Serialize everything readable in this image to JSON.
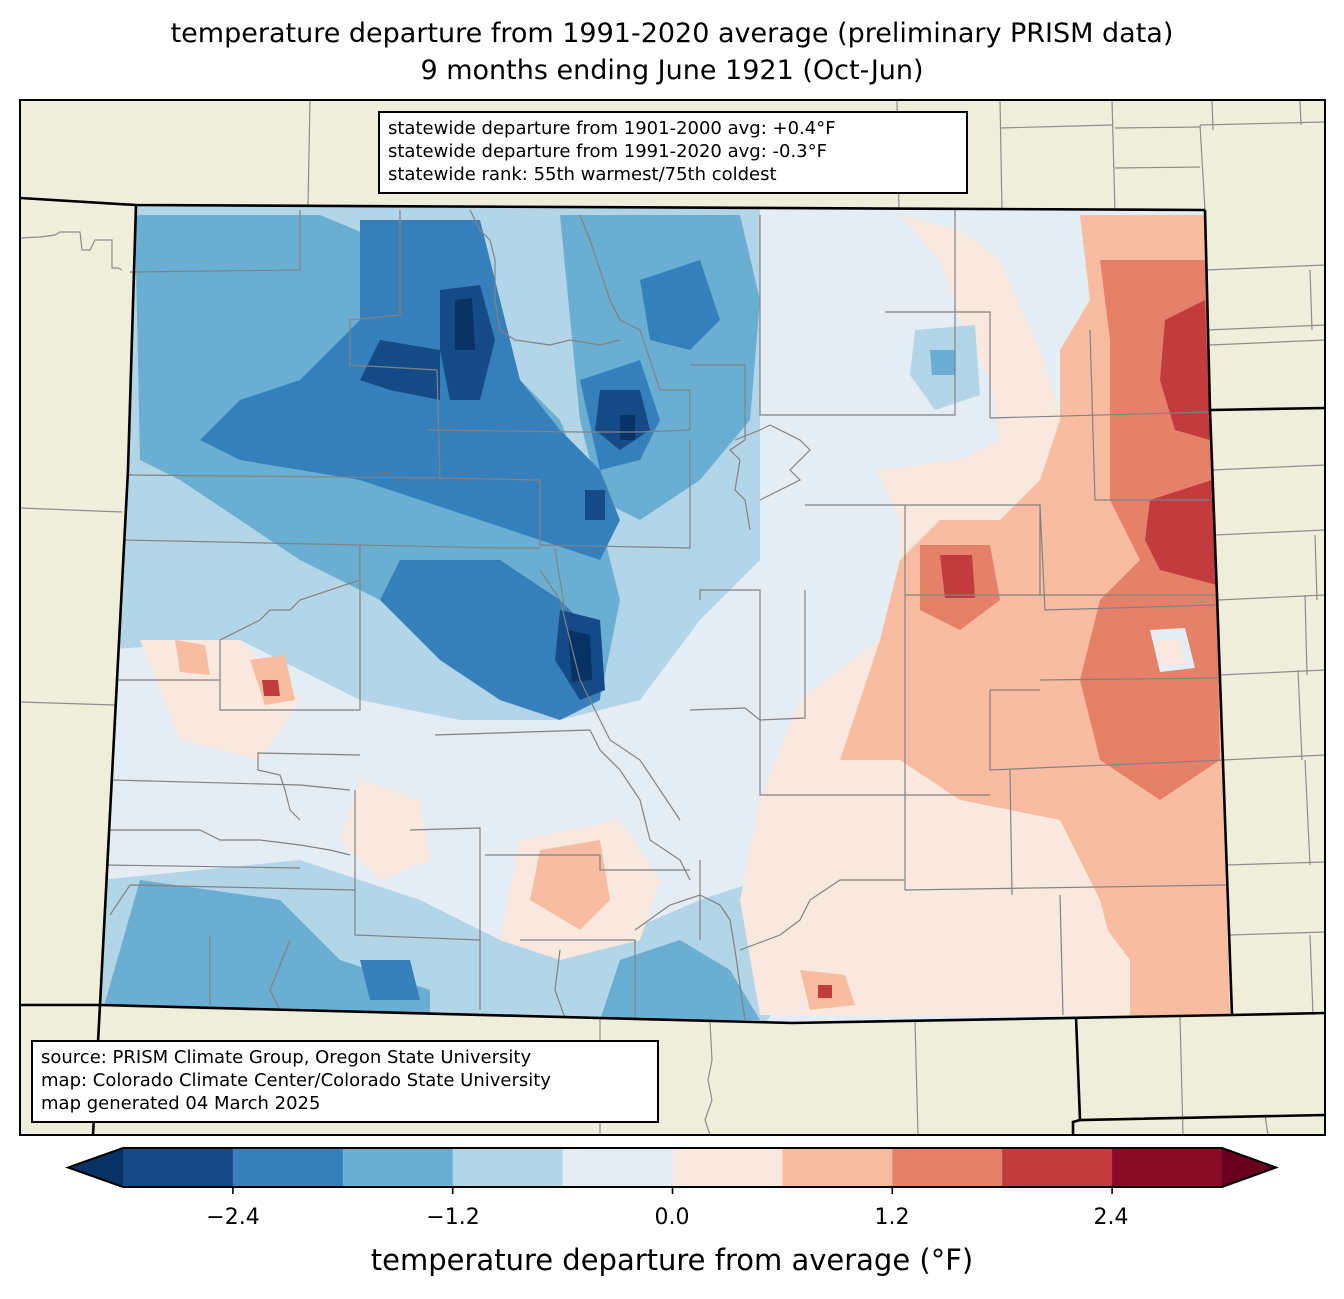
{
  "title": {
    "line1": "temperature departure from 1991-2020 average (preliminary PRISM data)",
    "line2": "9 months ending June 1921 (Oct-Jun)"
  },
  "stats_box": {
    "line1": "statewide departure from 1901-2000 avg: +0.4°F",
    "line2": "statewide departure from 1991-2020 avg: -0.3°F",
    "line3": "statewide rank: 55th warmest/75th coldest"
  },
  "source_box": {
    "line1": "source: PRISM Climate Group, Oregon State University",
    "line2": "map: Colorado Climate Center/Colorado State University",
    "line3": "map generated 04 March 2025"
  },
  "colorbar": {
    "label": "temperature departure from average (°F)",
    "ticks": [
      "−2.4",
      "−1.2",
      "0.0",
      "1.2",
      "2.4"
    ],
    "tick_values": [
      -2.4,
      -1.2,
      0.0,
      1.2,
      2.4
    ],
    "levels": [
      -3.0,
      -2.4,
      -1.8,
      -1.2,
      -0.6,
      0.0,
      0.6,
      1.2,
      1.8,
      2.4,
      3.0
    ],
    "colors": [
      "#144b86",
      "#3580ba",
      "#6aaed2",
      "#b2d5e7",
      "#e5edf4",
      "#f9e8de",
      "#f8bca1",
      "#e48168",
      "#c33c3d",
      "#8a0b25"
    ],
    "under_color": "#063264",
    "over_color": "#67001f"
  },
  "map_colors": {
    "land_background": "#efeedb",
    "state_border": "#000000",
    "county_border": "#808080"
  },
  "chart_data": {
    "type": "heatmap",
    "title": "temperature departure from 1991-2020 average (preliminary PRISM data) — 9 months ending June 1921 (Oct-Jun)",
    "region": "Colorado",
    "units": "°F",
    "value_range": [
      -3.0,
      3.0
    ],
    "summary": {
      "west_half": "mostly -0.6 to -2.4 (cooler than average), darkest cores below -2.4 in north-central and central mountains",
      "east_half": "mostly 0.0 to +1.8 (warmer than average), maxima +1.8 to +2.4 along the eastern border and an isolated core east-central",
      "statewide_departure_1901_2000": 0.4,
      "statewide_departure_1991_2020": -0.3
    }
  }
}
